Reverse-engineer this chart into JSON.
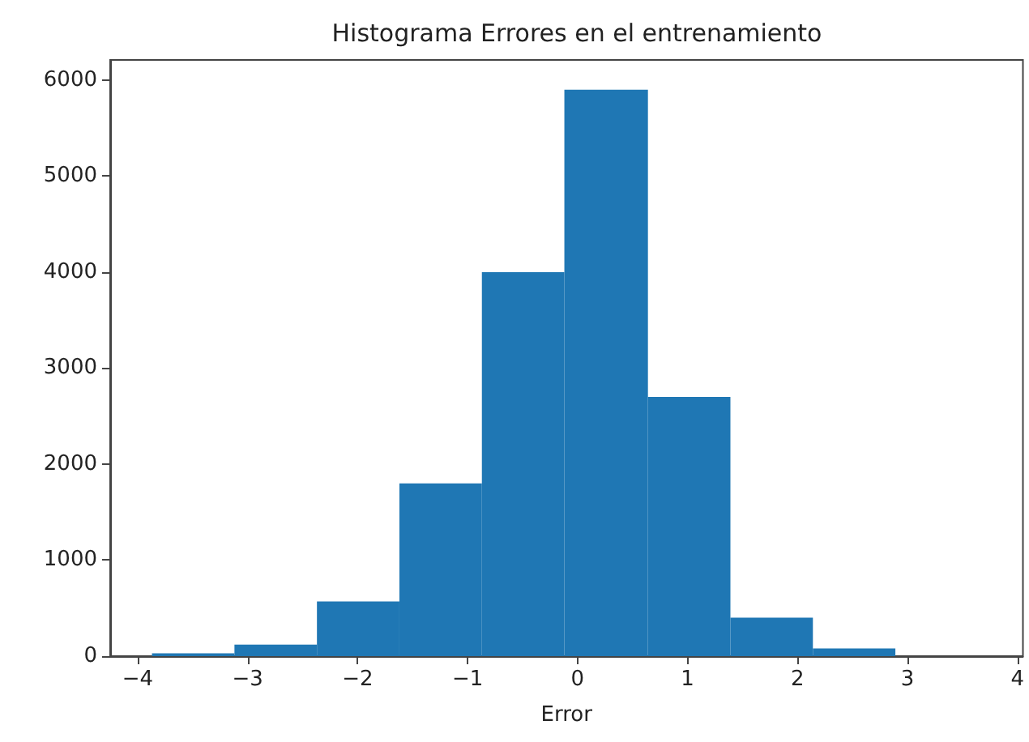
{
  "chart_data": {
    "type": "histogram",
    "title": "Histograma Errores en el entrenamiento",
    "xlabel": "Error",
    "bins": [
      -3.87,
      -3.12,
      -2.37,
      -1.62,
      -0.87,
      -0.12,
      0.64,
      1.39,
      2.14,
      2.89
    ],
    "values": [
      30,
      120,
      570,
      1800,
      4000,
      5900,
      2700,
      400,
      80
    ],
    "color": "#1f77b4",
    "xlim": [
      -4.25,
      4.05
    ],
    "xticks": [
      -4,
      -3,
      -2,
      -1,
      0,
      1,
      2,
      3,
      4
    ],
    "ylim": [
      0,
      6210
    ],
    "yticks": [
      0,
      1000,
      2000,
      3000,
      4000,
      5000,
      6000
    ],
    "grid": false
  }
}
